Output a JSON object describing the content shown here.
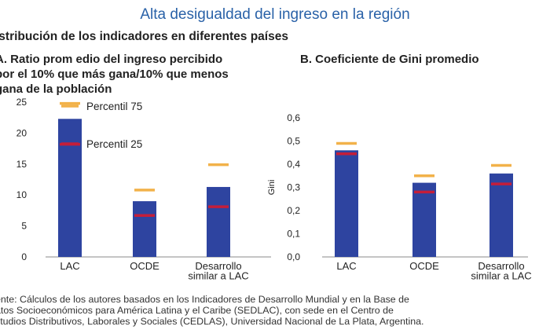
{
  "header": {
    "title": "Alta desigualdad del ingreso en la región",
    "subtitle": "istribución de los indicadores en diferentes países"
  },
  "colors": {
    "bar": "#2e44a0",
    "p75": "#f2b24a",
    "p25": "#c41e3a",
    "title": "#2a62a8",
    "axis": "#888888"
  },
  "chart_data": [
    {
      "type": "bar",
      "title_lines": [
        "A. Ratio prom edio del ingreso percibido",
        "por el 10% que más gana/10% que menos",
        "gana de la población"
      ],
      "categories": [
        [
          "LAC"
        ],
        [
          "OCDE"
        ],
        [
          "Desarrollo",
          "similar a LAC"
        ]
      ],
      "series": [
        {
          "values": [
            22.3,
            9.0,
            11.3
          ]
        },
        {
          "name": "Percentil 75",
          "marker": "line",
          "values": [
            24.8,
            10.8,
            14.9
          ]
        },
        {
          "name": "Percentil 25",
          "marker": "line",
          "values": [
            18.2,
            6.7,
            8.1
          ]
        }
      ],
      "ylim": [
        0,
        25
      ],
      "yticks": [
        "0",
        "5",
        "10",
        "15",
        "20",
        "25"
      ],
      "ylabel": ""
    },
    {
      "type": "bar",
      "title_lines": [
        "B. Coeficiente de Gini promedio"
      ],
      "categories": [
        [
          "LAC"
        ],
        [
          "OCDE"
        ],
        [
          "Desarrollo",
          "similar a LAC"
        ]
      ],
      "series": [
        {
          "values": [
            0.46,
            0.32,
            0.36
          ]
        },
        {
          "marker": "line",
          "values": [
            0.49,
            0.35,
            0.395
          ]
        },
        {
          "marker": "line",
          "values": [
            0.445,
            0.28,
            0.315
          ]
        }
      ],
      "ylim": [
        0,
        0.6
      ],
      "yticks": [
        "0,0",
        "0,1",
        "0,2",
        "0,3",
        "0,4",
        "0,5",
        "0,6"
      ],
      "ylabel": "Gini"
    }
  ],
  "source_lines": [
    "ente: Cálculos de los autores basados en los Indicadores de Desarrollo Mundial y en la Base de",
    "atos Socioeconómicos para América Latina y el Caribe (SEDLAC), con sede en el Centro de",
    "studios Distributivos, Laborales y Sociales (CEDLAS), Universidad Nacional de La Plata, Argentina."
  ]
}
